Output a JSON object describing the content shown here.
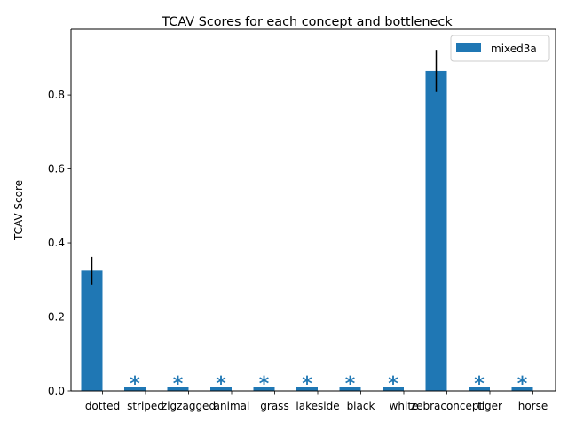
{
  "chart_data": {
    "type": "bar",
    "title": "TCAV Scores for each concept and bottleneck",
    "xlabel": "",
    "ylabel": "TCAV Score",
    "categories": [
      "dotted",
      "striped",
      "zigzagged",
      "animal",
      "grass",
      "lakeside",
      "black",
      "white",
      "zebraconcept",
      "tiger",
      "horse"
    ],
    "series": [
      {
        "name": "mixed3a",
        "color": "#1f77b4",
        "values": [
          0.325,
          0.01,
          0.01,
          0.01,
          0.01,
          0.01,
          0.01,
          0.01,
          0.865,
          0.01,
          0.01
        ],
        "errors": [
          0.037,
          0,
          0,
          0,
          0,
          0,
          0,
          0,
          0.057,
          0,
          0
        ],
        "significant": [
          true,
          false,
          false,
          false,
          false,
          false,
          false,
          false,
          true,
          false,
          false
        ]
      }
    ],
    "insignificant_marker": "*",
    "ylim": [
      0,
      0.9775
    ],
    "yticks": [
      0.0,
      0.2,
      0.4,
      0.6,
      0.8
    ],
    "ytick_labels": [
      "0.0",
      "0.2",
      "0.4",
      "0.6",
      "0.8"
    ],
    "grid": false,
    "legend_position": "upper right"
  }
}
